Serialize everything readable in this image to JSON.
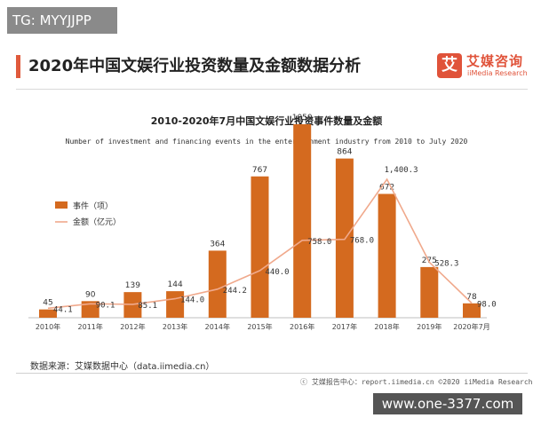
{
  "badge": {
    "text": "TG: MYYJJPP"
  },
  "header": {
    "title": "2020年中国文娱行业投资数量及金额数据分析",
    "brand_logo": "艾",
    "brand_name": "艾媒咨询",
    "brand_sub": "iiMedia Research"
  },
  "chart_data": {
    "type": "bar",
    "title": "2010-2020年7月中国文娱行业投资事件数量及金额",
    "subtitle": "Number of investment and financing events in the  entertainment industry from 2010 to July 2020",
    "categories": [
      "2010年",
      "2011年",
      "2012年",
      "2013年",
      "2014年",
      "2015年",
      "2016年",
      "2017年",
      "2018年",
      "2019年",
      "2020年7月"
    ],
    "series": [
      {
        "name": "事件（项）",
        "type": "bar",
        "color": "#d46a1f",
        "values": [
          45,
          90,
          139,
          144,
          364,
          767,
          1050,
          864,
          672,
          275,
          78
        ]
      },
      {
        "name": "金额（亿元）",
        "type": "line",
        "color": "#f0a98c",
        "values": [
          44.1,
          90.1,
          85.1,
          144.0,
          244.2,
          440.0,
          758.0,
          768.0,
          1400.3,
          528.3,
          98.0
        ],
        "labels": [
          "44.1",
          "90.1",
          "85.1",
          "144.0",
          "244.2",
          "440.0",
          "758.0",
          "768.0",
          "1,400.3",
          "528.3",
          "98.0"
        ]
      }
    ],
    "legend": "top-left",
    "grid": false
  },
  "source": "数据来源：艾媒数据中心（data.iimedia.cn）",
  "footer": "ⓒ 艾媒报告中心：report.iimedia.cn  ©2020  iiMedia Research  Inc",
  "watermark": "www.one-3377.com"
}
